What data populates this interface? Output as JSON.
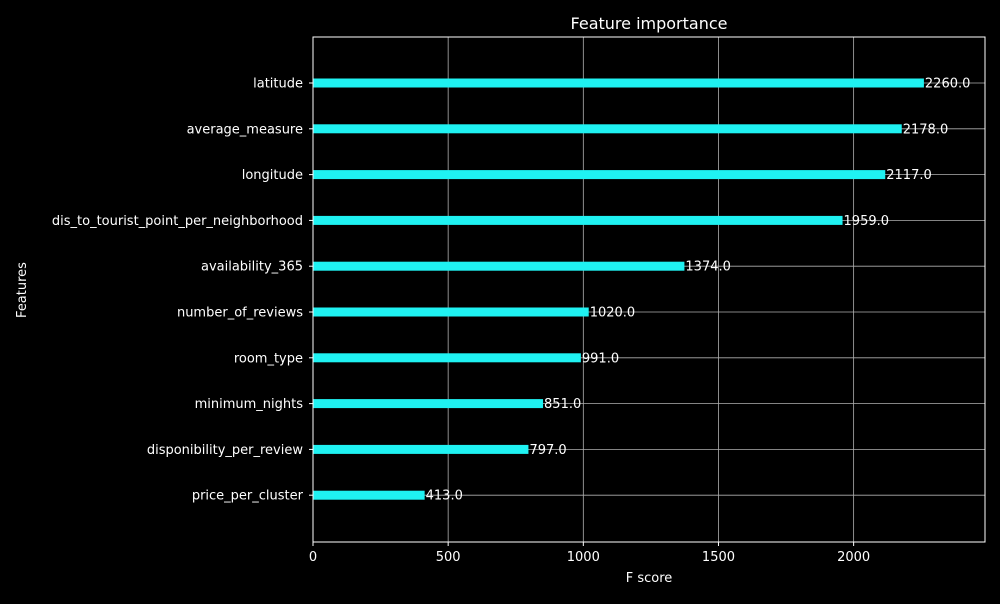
{
  "chart_data": {
    "type": "bar",
    "orientation": "horizontal",
    "title": "Feature importance",
    "xlabel": "F score",
    "ylabel": "Features",
    "categories": [
      "latitude",
      "average_measure",
      "longitude",
      "dis_to_tourist_point_per_neighborhood",
      "availability_365",
      "number_of_reviews",
      "room_type",
      "minimum_nights",
      "disponibility_per_review",
      "price_per_cluster"
    ],
    "values": [
      2260,
      2178,
      2117,
      1959,
      1374,
      1020,
      991,
      851,
      797,
      413
    ],
    "data_labels": [
      "2260.0",
      "2178.0",
      "2117.0",
      "1959.0",
      "1374.0",
      "1020.0",
      "991.0",
      "851.0",
      "797.0",
      "413.0"
    ],
    "xlim": [
      0,
      2486
    ],
    "xticks": [
      0,
      500,
      1000,
      1500,
      2000
    ],
    "xtick_labels": [
      "0",
      "500",
      "1000",
      "1500",
      "2000"
    ],
    "grid": true,
    "colors": {
      "background": "#000000",
      "bar": "#1ff2f2",
      "grid": "#b0b0b0",
      "axes": "#ffffff",
      "text": "#ffffff"
    }
  }
}
